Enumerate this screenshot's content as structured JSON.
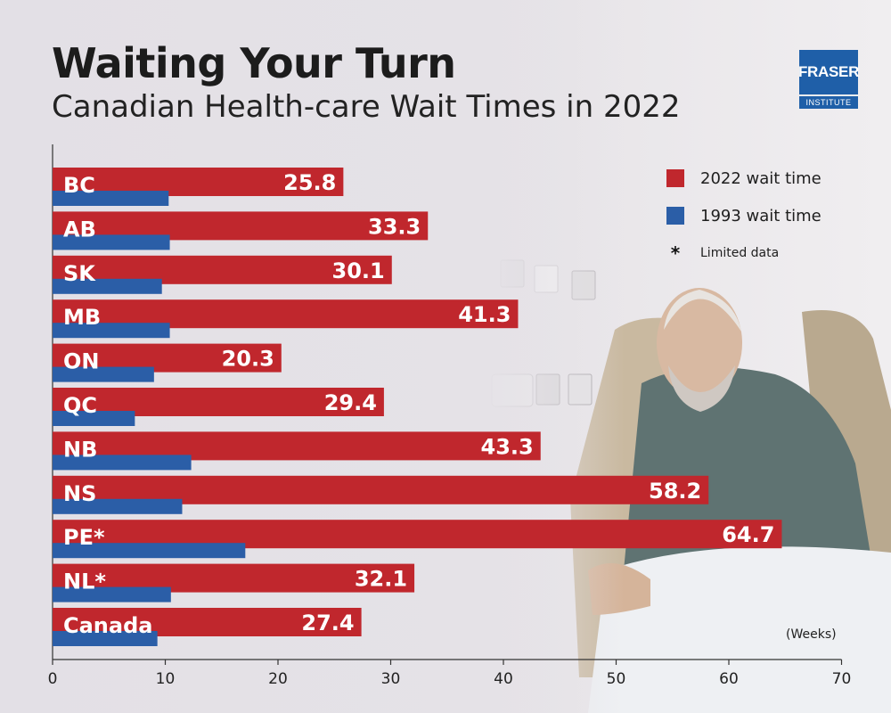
{
  "header": {
    "title": "Waiting Your Turn",
    "subtitle": "Canadian Health-care Wait Times in 2022"
  },
  "logo": {
    "line1": "FRASER",
    "line2": "INSTITUTE"
  },
  "legend": {
    "items": [
      {
        "label": "2022 wait time",
        "color": "#c0272d"
      },
      {
        "label": "1993 wait time",
        "color": "#2b5ea7"
      }
    ],
    "note_symbol": "*",
    "note_label": "Limited data"
  },
  "units_label": "(Weeks)",
  "chart_data": {
    "type": "bar",
    "orientation": "horizontal",
    "categories": [
      "BC",
      "AB",
      "SK",
      "MB",
      "ON",
      "QC",
      "NB",
      "NS",
      "PE*",
      "NL*",
      "Canada"
    ],
    "series": [
      {
        "name": "2022 wait time",
        "color": "#c0272d",
        "values": [
          25.8,
          33.3,
          30.1,
          41.3,
          20.3,
          29.4,
          43.3,
          58.2,
          64.7,
          32.1,
          27.4
        ]
      },
      {
        "name": "1993 wait time",
        "color": "#2b5ea7",
        "values": [
          10.3,
          10.4,
          9.7,
          10.4,
          9.0,
          7.3,
          12.3,
          11.5,
          17.1,
          10.5,
          9.3
        ]
      }
    ],
    "xlim": [
      0,
      70
    ],
    "xticks": [
      "0",
      "10",
      "20",
      "30",
      "40",
      "50",
      "60",
      "70"
    ],
    "xlabel": "(Weeks)"
  }
}
